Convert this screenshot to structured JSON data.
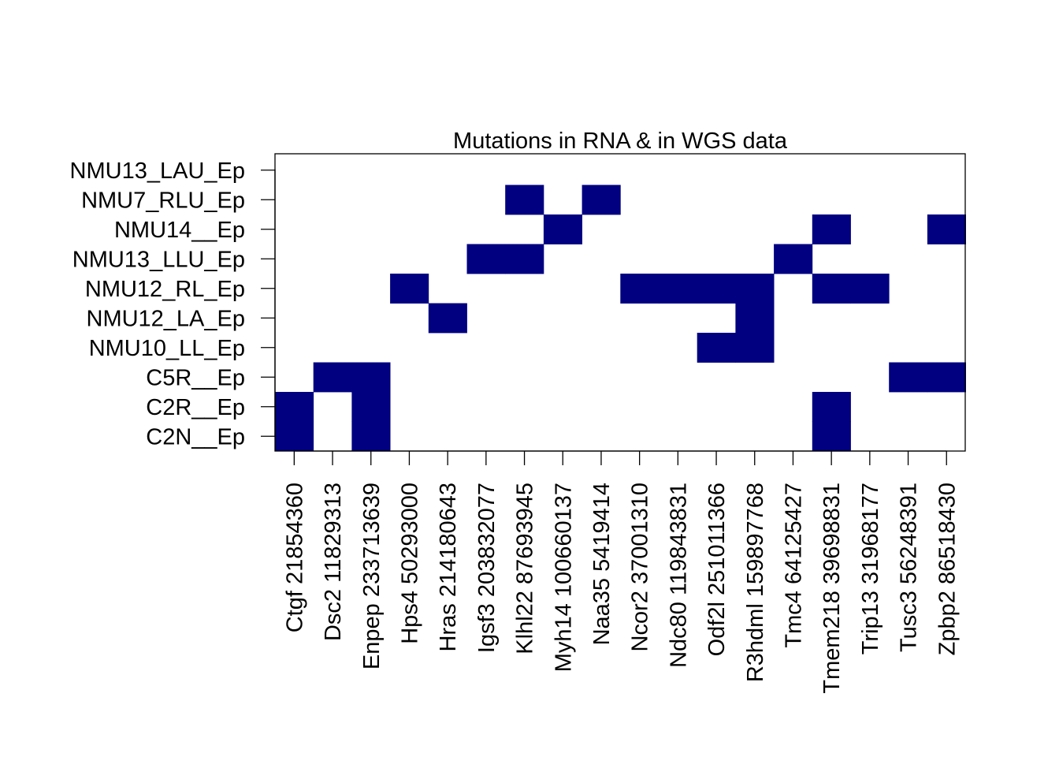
{
  "chart_data": {
    "type": "heatmap",
    "title": "Mutations in RNA & in WGS data",
    "xlabel": "",
    "ylabel": "",
    "x_categories": [
      "Ctgf 21854360",
      "Dsc2 11829313",
      "Enpep 233713639",
      "Hps4 50293000",
      "Hras 214180643",
      "Igsf3 203832077",
      "Klhl22 87693945",
      "Myh14 100660137",
      "Naa35 5419414",
      "Ncor2 37001310",
      "Ndc80 119843831",
      "Odf2l 251011366",
      "R3hdml 159897768",
      "Tmc4 64125427",
      "Tmem218 39698831",
      "Trip13 31968177",
      "Tusc3 56248391",
      "Zpbp2 86518430"
    ],
    "y_categories": [
      "NMU13_LAU_Ep",
      "NMU7_RLU_Ep",
      "NMU14__Ep",
      "NMU13_LLU_Ep",
      "NMU12_RL_Ep",
      "NMU12_LA_Ep",
      "NMU10_LL_Ep",
      "C5R__Ep",
      "C2R__Ep",
      "C2N__Ep"
    ],
    "values": [
      [
        0,
        0,
        0,
        0,
        0,
        0,
        0,
        0,
        0,
        0,
        0,
        0,
        0,
        0,
        0,
        0,
        0,
        0
      ],
      [
        0,
        0,
        0,
        0,
        0,
        0,
        1,
        0,
        1,
        0,
        0,
        0,
        0,
        0,
        0,
        0,
        0,
        0
      ],
      [
        0,
        0,
        0,
        0,
        0,
        0,
        0,
        1,
        0,
        0,
        0,
        0,
        0,
        0,
        1,
        0,
        0,
        1
      ],
      [
        0,
        0,
        0,
        0,
        0,
        1,
        1,
        0,
        0,
        0,
        0,
        0,
        0,
        1,
        0,
        0,
        0,
        0
      ],
      [
        0,
        0,
        0,
        1,
        0,
        0,
        0,
        0,
        0,
        1,
        1,
        1,
        1,
        0,
        1,
        1,
        0,
        0
      ],
      [
        0,
        0,
        0,
        0,
        1,
        0,
        0,
        0,
        0,
        0,
        0,
        0,
        1,
        0,
        0,
        0,
        0,
        0
      ],
      [
        0,
        0,
        0,
        0,
        0,
        0,
        0,
        0,
        0,
        0,
        0,
        1,
        1,
        0,
        0,
        0,
        0,
        0
      ],
      [
        0,
        1,
        1,
        0,
        0,
        0,
        0,
        0,
        0,
        0,
        0,
        0,
        0,
        0,
        0,
        0,
        1,
        1
      ],
      [
        1,
        0,
        1,
        0,
        0,
        0,
        0,
        0,
        0,
        0,
        0,
        0,
        0,
        0,
        1,
        0,
        0,
        0
      ],
      [
        1,
        0,
        1,
        0,
        0,
        0,
        0,
        0,
        0,
        0,
        0,
        0,
        0,
        0,
        1,
        0,
        0,
        0
      ]
    ],
    "colors": {
      "present": "#000080",
      "absent": "#ffffff"
    },
    "grid": false,
    "legend": "none"
  }
}
